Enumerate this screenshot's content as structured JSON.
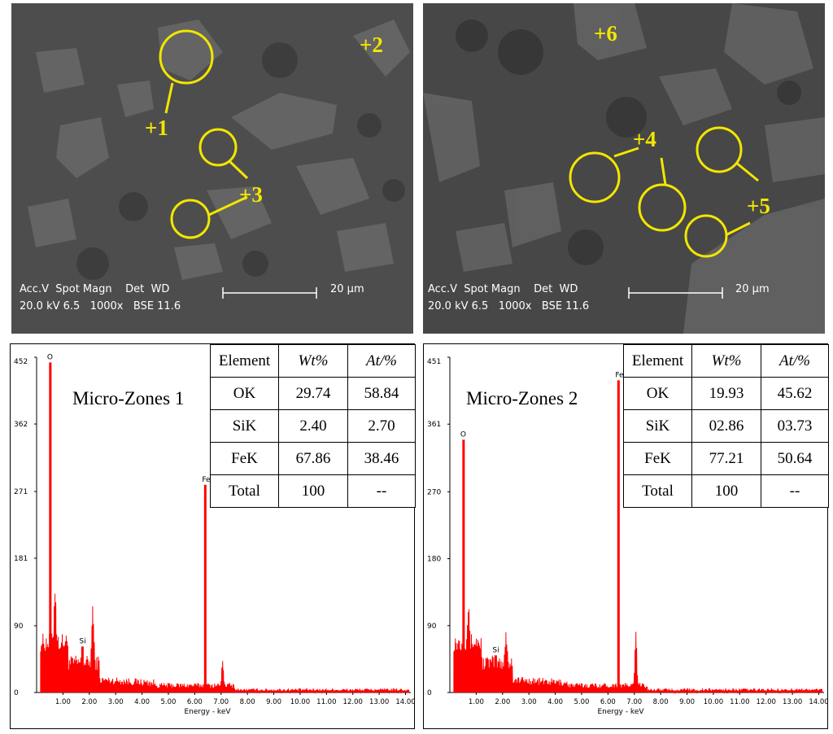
{
  "sem_images": [
    {
      "info_line1": "Acc.V  Spot Magn    Det  WD",
      "info_line2": "20.0 kV 6.5   1000x   BSE 11.6",
      "scale_label": "20 µm",
      "markers": [
        "+1",
        "+2",
        "+3"
      ]
    },
    {
      "info_line1": "Acc.V  Spot Magn    Det  WD",
      "info_line2": "20.0 kV 6.5   1000x   BSE 11.6",
      "scale_label": "20 µm",
      "markers": [
        "+6",
        "+4",
        "+5"
      ]
    }
  ],
  "colors": {
    "spectrum": "#ff0000",
    "marker": "#f2e600",
    "sem_background": "#4a4a4a"
  },
  "chart_data": [
    {
      "type": "bar",
      "title": "Micro-Zones 1",
      "xlabel": "Energy - keV",
      "xlim": [
        0,
        14.2
      ],
      "ylim": [
        0,
        452
      ],
      "y_ticks": [
        0,
        90,
        181,
        271,
        362,
        452
      ],
      "x_ticks": [
        "1.00",
        "2.00",
        "3.00",
        "4.00",
        "5.00",
        "6.00",
        "7.00",
        "8.00",
        "9.00",
        "10.00",
        "11.00",
        "12.00",
        "13.00",
        "14.00"
      ],
      "peaks": [
        {
          "label": "O",
          "energy": 0.52,
          "counts": 445
        },
        {
          "label": "Si",
          "energy": 1.74,
          "counts": 62
        },
        {
          "label": "Fe",
          "energy": 6.4,
          "counts": 280
        }
      ],
      "table": {
        "headers": [
          "Element",
          "Wt%",
          "At/%"
        ],
        "rows": [
          [
            "OK",
            "29.74",
            "58.84"
          ],
          [
            "SiK",
            "2.40",
            "2.70"
          ],
          [
            "FeK",
            "67.86",
            "38.46"
          ],
          [
            "Total",
            "100",
            "--"
          ]
        ]
      }
    },
    {
      "type": "bar",
      "title": "Micro-Zones 2",
      "xlabel": "Energy - keV",
      "xlim": [
        0,
        14.2
      ],
      "ylim": [
        0,
        451
      ],
      "y_ticks": [
        0,
        90,
        180,
        270,
        361,
        451
      ],
      "x_ticks": [
        "1.00",
        "2.00",
        "3.00",
        "4.00",
        "5.00",
        "6.00",
        "7.00",
        "8.00",
        "9.00",
        "10.00",
        "11.00",
        "12.00",
        "13.00",
        "14.00"
      ],
      "peaks": [
        {
          "label": "O",
          "energy": 0.52,
          "counts": 340
        },
        {
          "label": "Si",
          "energy": 1.74,
          "counts": 50
        },
        {
          "label": "Fe",
          "energy": 6.4,
          "counts": 420
        }
      ],
      "table": {
        "headers": [
          "Element",
          "Wt%",
          "At/%"
        ],
        "rows": [
          [
            "OK",
            "19.93",
            "45.62"
          ],
          [
            "SiK",
            "02.86",
            "03.73"
          ],
          [
            "FeK",
            "77.21",
            "50.64"
          ],
          [
            "Total",
            "100",
            "--"
          ]
        ]
      }
    }
  ]
}
